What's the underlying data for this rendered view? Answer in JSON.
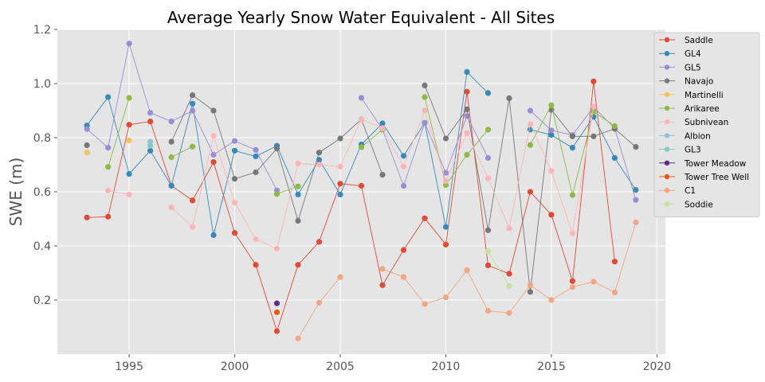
{
  "chart_data": {
    "type": "line",
    "title": "Average Yearly Snow Water Equivalent - All Sites",
    "xlabel": "",
    "ylabel": "SWE (m)",
    "xlim": [
      1991.6,
      2020.4
    ],
    "ylim": [
      0.0,
      1.2
    ],
    "xticks": [
      1995,
      2000,
      2005,
      2010,
      2015,
      2020
    ],
    "yticks": [
      0.2,
      0.4,
      0.6,
      0.8,
      1.0,
      1.2
    ],
    "ytick_labels": [
      "0.2",
      "0.4",
      "0.6",
      "0.8",
      "1.0",
      "1.2"
    ],
    "grid": true,
    "legend_position": "top-right",
    "series": [
      {
        "name": "Saddle",
        "color": "#e24a33",
        "points": [
          [
            1993,
            0.505
          ],
          [
            1994,
            0.508
          ],
          [
            1995,
            0.848
          ],
          [
            1996,
            0.86
          ],
          [
            1997,
            0.623
          ],
          [
            1998,
            0.568
          ],
          [
            1999,
            0.71
          ],
          [
            2000,
            0.448
          ],
          [
            2001,
            0.33
          ],
          [
            2002,
            0.085
          ],
          [
            2003,
            0.33
          ],
          [
            2004,
            0.415
          ],
          [
            2005,
            0.63
          ],
          [
            2006,
            0.622
          ],
          [
            2007,
            0.255
          ],
          [
            2008,
            0.385
          ],
          [
            2009,
            0.502
          ],
          [
            2010,
            0.405
          ],
          [
            2011,
            0.97
          ],
          [
            2012,
            0.328
          ],
          [
            2013,
            0.297
          ],
          [
            2014,
            0.6
          ],
          [
            2015,
            0.515
          ],
          [
            2016,
            0.27
          ],
          [
            2017,
            1.008
          ],
          [
            2018,
            0.342
          ]
        ]
      },
      {
        "name": "GL4",
        "color": "#348abd",
        "points": [
          [
            1993,
            0.845
          ],
          [
            1994,
            0.95
          ],
          [
            1995,
            0.666
          ],
          [
            1996,
            0.752
          ],
          [
            1997,
            0.622
          ],
          [
            1998,
            0.926
          ],
          [
            1999,
            0.44
          ],
          [
            2000,
            0.752
          ],
          [
            2001,
            0.731
          ],
          [
            2002,
            0.77
          ],
          [
            2003,
            0.59
          ],
          [
            2004,
            0.718
          ],
          [
            2005,
            0.59
          ],
          [
            2006,
            0.775
          ],
          [
            2007,
            0.853
          ],
          [
            2008,
            0.733
          ],
          [
            2009,
            0.855
          ],
          [
            2010,
            0.47
          ],
          [
            2011,
            1.043
          ],
          [
            2012,
            0.965
          ],
          [
            null,
            null
          ],
          [
            2014,
            0.83
          ],
          [
            2015,
            0.81
          ],
          [
            2016,
            0.763
          ],
          [
            2017,
            0.877
          ],
          [
            2018,
            0.725
          ],
          [
            2019,
            0.607
          ]
        ]
      },
      {
        "name": "GL5",
        "color": "#988ed5",
        "points": [
          [
            1993,
            0.832
          ],
          [
            1994,
            0.763
          ],
          [
            1995,
            1.148
          ],
          [
            1996,
            0.892
          ],
          [
            1997,
            0.86
          ],
          [
            1998,
            0.9
          ],
          [
            1999,
            0.737
          ],
          [
            2000,
            0.788
          ],
          [
            2001,
            0.755
          ],
          [
            2002,
            0.605
          ],
          [
            null,
            null
          ],
          [
            2006,
            0.947
          ],
          [
            2007,
            0.83
          ],
          [
            2008,
            0.622
          ],
          [
            2009,
            0.855
          ],
          [
            2010,
            0.67
          ],
          [
            2011,
            0.88
          ],
          [
            2012,
            0.725
          ],
          [
            null,
            null
          ],
          [
            2014,
            0.9
          ],
          [
            2015,
            0.827
          ],
          [
            2016,
            0.81
          ],
          [
            2017,
            0.913
          ],
          [
            2018,
            0.835
          ],
          [
            2019,
            0.57
          ]
        ]
      },
      {
        "name": "Navajo",
        "color": "#777777",
        "points": [
          [
            1993,
            0.772
          ],
          [
            null,
            null
          ],
          [
            1997,
            0.785
          ],
          [
            1998,
            0.957
          ],
          [
            1999,
            0.9
          ],
          [
            2000,
            0.648
          ],
          [
            2001,
            0.672
          ],
          [
            2002,
            0.76
          ],
          [
            2003,
            0.493
          ],
          [
            2004,
            0.745
          ],
          [
            2005,
            0.797
          ],
          [
            2006,
            0.868
          ],
          [
            2007,
            0.663
          ],
          [
            null,
            null
          ],
          [
            2009,
            0.993
          ],
          [
            2010,
            0.797
          ],
          [
            2011,
            0.905
          ],
          [
            2012,
            0.458
          ],
          [
            2013,
            0.946
          ],
          [
            2014,
            0.23
          ],
          [
            2015,
            0.903
          ],
          [
            2016,
            0.805
          ],
          [
            2017,
            0.805
          ],
          [
            2018,
            0.833
          ],
          [
            2019,
            0.766
          ]
        ]
      },
      {
        "name": "Martinelli",
        "color": "#fbc15e",
        "points": [
          [
            1993,
            0.745
          ],
          [
            null,
            null
          ],
          [
            1995,
            0.79
          ]
        ]
      },
      {
        "name": "Arikaree",
        "color": "#8eba42",
        "points": [
          [
            1994,
            0.692
          ],
          [
            1995,
            0.947
          ],
          [
            null,
            null
          ],
          [
            1997,
            0.728
          ],
          [
            1998,
            0.767
          ],
          [
            null,
            null
          ],
          [
            2002,
            0.592
          ],
          [
            2003,
            0.62
          ],
          [
            null,
            null
          ],
          [
            2006,
            0.765
          ],
          [
            2007,
            0.83
          ],
          [
            null,
            null
          ],
          [
            2009,
            0.95
          ],
          [
            2010,
            0.625
          ],
          [
            2011,
            0.737
          ],
          [
            2012,
            0.83
          ],
          [
            null,
            null
          ],
          [
            2014,
            0.773
          ],
          [
            2015,
            0.92
          ],
          [
            2016,
            0.588
          ],
          [
            2017,
            0.897
          ],
          [
            2018,
            0.843
          ]
        ]
      },
      {
        "name": "Subnivean",
        "color": "#ffb5b8",
        "points": [
          [
            1994,
            0.605
          ],
          [
            1995,
            0.59
          ],
          [
            null,
            null
          ],
          [
            1997,
            0.542
          ],
          [
            1998,
            0.47
          ],
          [
            1999,
            0.807
          ],
          [
            2000,
            0.56
          ],
          [
            2001,
            0.425
          ],
          [
            2002,
            0.39
          ],
          [
            2003,
            0.705
          ],
          [
            2004,
            0.7
          ],
          [
            2005,
            0.693
          ],
          [
            2006,
            0.868
          ],
          [
            2007,
            0.835
          ],
          [
            2008,
            0.693
          ],
          [
            2009,
            0.9
          ],
          [
            2010,
            0.64
          ],
          [
            2011,
            0.817
          ],
          [
            2012,
            0.65
          ],
          [
            2013,
            0.465
          ],
          [
            2014,
            0.85
          ],
          [
            2015,
            0.677
          ],
          [
            2016,
            0.447
          ],
          [
            2017,
            0.915
          ]
        ]
      },
      {
        "name": "Albion",
        "color": "#8ec1da",
        "points": [
          [
            1996,
            0.785
          ]
        ]
      },
      {
        "name": "GL3",
        "color": "#80cbc4",
        "points": [
          [
            1996,
            0.77
          ]
        ]
      },
      {
        "name": "Tower Meadow",
        "color": "#5a2d8c",
        "points": [
          [
            2002,
            0.188
          ]
        ]
      },
      {
        "name": "Tower Tree Well",
        "color": "#e35d10",
        "points": [
          [
            2002,
            0.155
          ]
        ]
      },
      {
        "name": "C1",
        "color": "#f4a582",
        "points": [
          [
            2003,
            0.058
          ],
          [
            2004,
            0.19
          ],
          [
            2005,
            0.285
          ],
          [
            null,
            null
          ],
          [
            2007,
            0.315
          ],
          [
            2008,
            0.285
          ],
          [
            2009,
            0.185
          ],
          [
            2010,
            0.21
          ],
          [
            2011,
            0.31
          ],
          [
            2012,
            0.16
          ],
          [
            2013,
            0.152
          ],
          [
            2014,
            0.255
          ],
          [
            2015,
            0.2
          ],
          [
            2016,
            0.248
          ],
          [
            2017,
            0.268
          ],
          [
            2018,
            0.228
          ],
          [
            2019,
            0.487
          ]
        ]
      },
      {
        "name": "Soddie",
        "color": "#c3e49a",
        "points": [
          [
            2012,
            0.38
          ],
          [
            2013,
            0.252
          ]
        ]
      }
    ]
  }
}
